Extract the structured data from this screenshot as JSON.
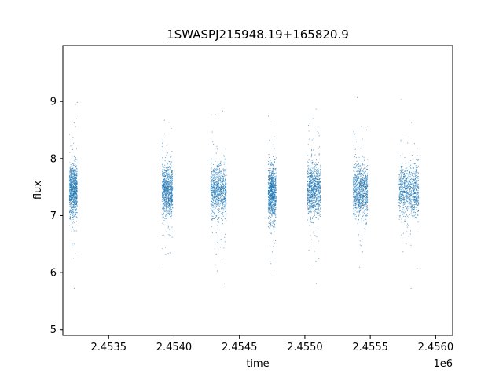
{
  "chart_data": {
    "type": "scatter",
    "title": "1SWASPJ215948.19+165820.9",
    "xlabel": "time",
    "ylabel": "flux",
    "x_offset_label": "1e6",
    "xlim": [
      2453150,
      2456130
    ],
    "ylim": [
      4.9,
      9.98
    ],
    "x_ticks": [
      2453500,
      2454000,
      2454500,
      2455000,
      2455500,
      2456000
    ],
    "x_tick_labels": [
      "2.4535",
      "2.4540",
      "2.4545",
      "2.4550",
      "2.4555",
      "2.4560"
    ],
    "y_ticks": [
      5,
      6,
      7,
      8,
      9
    ],
    "y_tick_labels": [
      "5",
      "6",
      "7",
      "8",
      "9"
    ],
    "grid": false,
    "marker_color": "#1f77b4",
    "seasons": [
      {
        "x_start": 2453200,
        "x_end": 2453260,
        "y_center": 7.45,
        "y_min": 5.1,
        "y_max": 9.7
      },
      {
        "x_start": 2453910,
        "x_end": 2453990,
        "y_center": 7.45,
        "y_min": 5.5,
        "y_max": 9.6
      },
      {
        "x_start": 2454280,
        "x_end": 2454400,
        "y_center": 7.45,
        "y_min": 5.15,
        "y_max": 9.75
      },
      {
        "x_start": 2454720,
        "x_end": 2454780,
        "y_center": 7.4,
        "y_min": 5.1,
        "y_max": 9.4
      },
      {
        "x_start": 2455020,
        "x_end": 2455120,
        "y_center": 7.45,
        "y_min": 5.1,
        "y_max": 9.75
      },
      {
        "x_start": 2455370,
        "x_end": 2455480,
        "y_center": 7.45,
        "y_min": 5.2,
        "y_max": 9.7
      },
      {
        "x_start": 2455720,
        "x_end": 2455870,
        "y_center": 7.45,
        "y_min": 5.1,
        "y_max": 9.75
      }
    ]
  }
}
